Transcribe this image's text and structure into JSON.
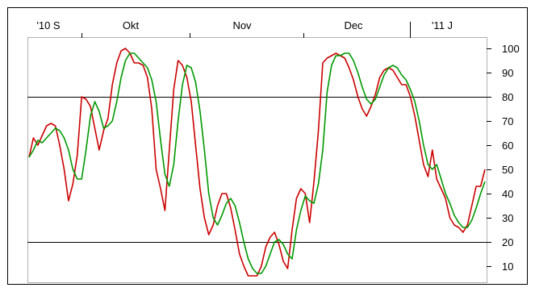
{
  "chart_data": {
    "type": "line",
    "title": "",
    "xlabel": "",
    "ylabel": "",
    "ylim": [
      0,
      105
    ],
    "x_tick_labels": [
      "'10 S",
      "Okt",
      "Nov",
      "Dec",
      "'11 J"
    ],
    "y_tick_labels": [
      "100",
      "90",
      "80",
      "70",
      "60",
      "50",
      "40",
      "30",
      "20",
      "10"
    ],
    "y_ticks": [
      100,
      90,
      80,
      70,
      60,
      50,
      40,
      30,
      20,
      10
    ],
    "reference_lines": [
      80,
      20
    ],
    "legend": "none",
    "grid": false,
    "series": [
      {
        "color": "#cc0000",
        "values": [
          55,
          63,
          60,
          64,
          68,
          69,
          68,
          60,
          50,
          37,
          44,
          56,
          80,
          79,
          76,
          67,
          58,
          66,
          71,
          85,
          94,
          99,
          100,
          98,
          94,
          94,
          93,
          88,
          75,
          50,
          42,
          33,
          58,
          83,
          95,
          93,
          88,
          78,
          60,
          42,
          30,
          23,
          27,
          35,
          40,
          40,
          34,
          25,
          15,
          10,
          6,
          6,
          6,
          10,
          18,
          22,
          24,
          19,
          12,
          9,
          25,
          38,
          42,
          40,
          28,
          45,
          66,
          94,
          96,
          97,
          98,
          97,
          96,
          92,
          87,
          80,
          75,
          72,
          76,
          81,
          88,
          91,
          92,
          91,
          88,
          85,
          85,
          80,
          72,
          62,
          52,
          47,
          58,
          46,
          42,
          38,
          30,
          27,
          26,
          24,
          27,
          35,
          43,
          43,
          50
        ]
      },
      {
        "color": "#009900",
        "values": [
          55,
          58,
          62,
          61,
          63,
          65,
          67,
          66,
          63,
          58,
          50,
          46,
          46,
          58,
          72,
          78,
          74,
          67,
          68,
          70,
          78,
          88,
          95,
          98,
          98,
          96,
          94,
          92,
          87,
          78,
          62,
          48,
          43,
          52,
          70,
          85,
          93,
          92,
          86,
          74,
          58,
          40,
          30,
          27,
          31,
          36,
          38,
          35,
          28,
          20,
          13,
          9,
          7,
          7,
          10,
          15,
          20,
          21,
          19,
          15,
          13,
          25,
          33,
          39,
          37,
          36,
          44,
          58,
          82,
          93,
          97,
          97,
          98,
          98,
          95,
          90,
          84,
          79,
          77,
          79,
          84,
          89,
          92,
          93,
          92,
          89,
          87,
          83,
          78,
          70,
          60,
          52,
          50,
          52,
          46,
          40,
          36,
          31,
          28,
          26,
          26,
          29,
          34,
          40,
          45
        ]
      }
    ]
  }
}
